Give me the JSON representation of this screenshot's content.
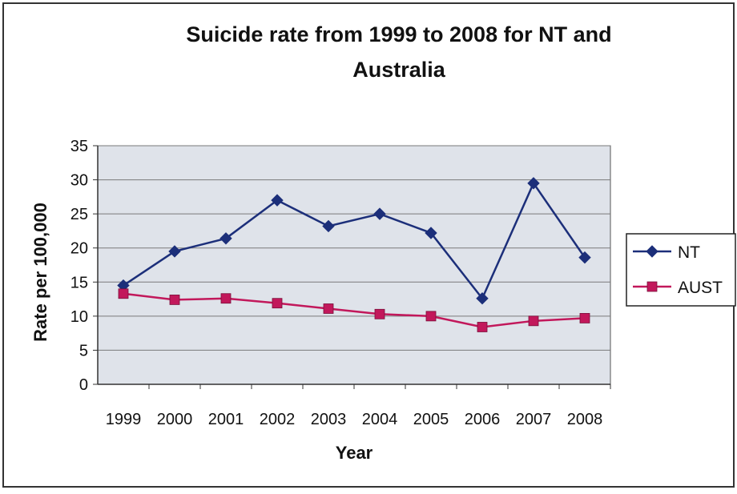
{
  "chart_data": {
    "type": "line",
    "title_line1": "Suicide rate from 1999 to 2008 for NT and",
    "title_line2": "Australia",
    "xlabel": "Year",
    "ylabel": "Rate per 100,000",
    "categories": [
      "1999",
      "2000",
      "2001",
      "2002",
      "2003",
      "2004",
      "2005",
      "2006",
      "2007",
      "2008"
    ],
    "ylim": [
      0,
      35
    ],
    "yticks": [
      "0",
      "5",
      "10",
      "15",
      "20",
      "25",
      "30",
      "35"
    ],
    "grid": true,
    "legend_position": "right",
    "series": [
      {
        "name": "NT",
        "color": "#1c2f7a",
        "marker": "diamond",
        "values": [
          14.5,
          19.5,
          21.4,
          27.0,
          23.2,
          25.0,
          22.2,
          12.6,
          29.5,
          18.6
        ]
      },
      {
        "name": "AUST",
        "color": "#c2185b",
        "marker": "square",
        "values": [
          13.3,
          12.4,
          12.6,
          11.9,
          11.1,
          10.3,
          10.0,
          8.4,
          9.3,
          9.7
        ]
      }
    ]
  },
  "colors": {
    "plot_background": "#dfe3ea",
    "gridline": "#7a7a7a",
    "frame": "#333333"
  }
}
